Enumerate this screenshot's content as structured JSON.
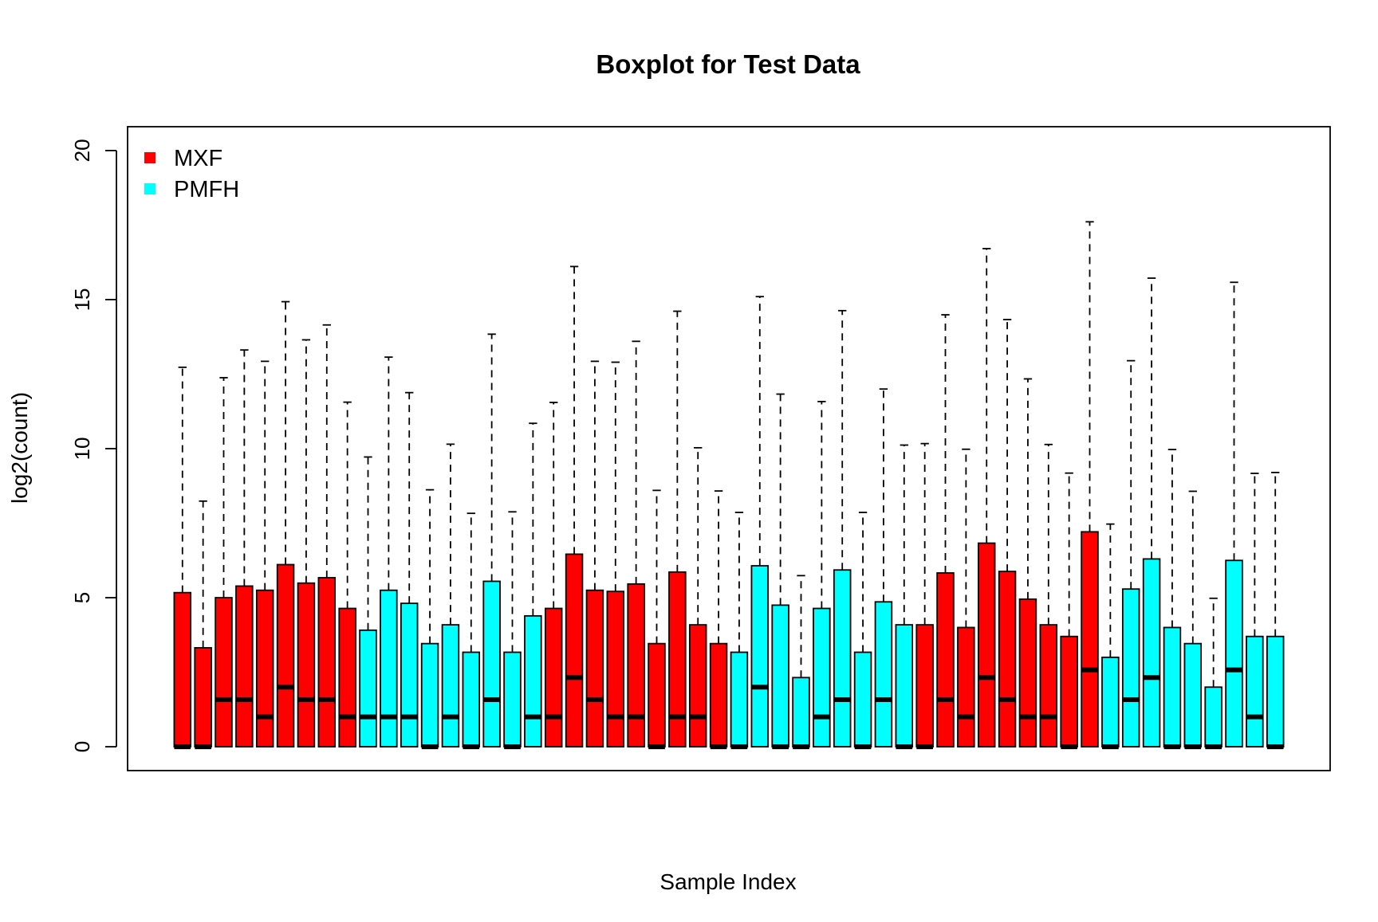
{
  "chart_data": {
    "type": "boxplot",
    "title": "Boxplot for Test Data",
    "xlabel": "Sample Index",
    "ylabel": "log2(count)",
    "ylim": [
      -0.8,
      20.8
    ],
    "y_ticks": [
      0,
      5,
      10,
      15,
      20
    ],
    "x_tick_labels": [],
    "grid": false,
    "legend": {
      "placement": "top-left",
      "items": [
        {
          "label": "MXF",
          "color": "#ff0000"
        },
        {
          "label": "PMFH",
          "color": "#00ffff"
        }
      ]
    },
    "colors": {
      "MXF": "#ff0000",
      "PMFH": "#00ffff"
    },
    "samples": [
      {
        "group": "MXF",
        "min": 0,
        "q1": 0,
        "median": 0.0,
        "q3": 5.17,
        "whisker_max": 12.73
      },
      {
        "group": "MXF",
        "min": 0,
        "q1": 0,
        "median": 0.0,
        "q3": 3.32,
        "whisker_max": 8.24
      },
      {
        "group": "MXF",
        "min": 0,
        "q1": 0,
        "median": 1.58,
        "q3": 5.0,
        "whisker_max": 12.38
      },
      {
        "group": "MXF",
        "min": 0,
        "q1": 0,
        "median": 1.58,
        "q3": 5.39,
        "whisker_max": 13.31
      },
      {
        "group": "MXF",
        "min": 0,
        "q1": 0,
        "median": 1.0,
        "q3": 5.25,
        "whisker_max": 12.93
      },
      {
        "group": "MXF",
        "min": 0,
        "q1": 0,
        "median": 2.0,
        "q3": 6.11,
        "whisker_max": 14.93
      },
      {
        "group": "MXF",
        "min": 0,
        "q1": 0,
        "median": 1.58,
        "q3": 5.49,
        "whisker_max": 13.65
      },
      {
        "group": "MXF",
        "min": 0,
        "q1": 0,
        "median": 1.58,
        "q3": 5.67,
        "whisker_max": 14.15
      },
      {
        "group": "MXF",
        "min": 0,
        "q1": 0,
        "median": 1.0,
        "q3": 4.64,
        "whisker_max": 11.56
      },
      {
        "group": "PMFH",
        "min": 0,
        "q1": 0,
        "median": 1.0,
        "q3": 3.91,
        "whisker_max": 9.72
      },
      {
        "group": "PMFH",
        "min": 0,
        "q1": 0,
        "median": 1.0,
        "q3": 5.25,
        "whisker_max": 13.07
      },
      {
        "group": "PMFH",
        "min": 0,
        "q1": 0,
        "median": 1.0,
        "q3": 4.81,
        "whisker_max": 11.88
      },
      {
        "group": "PMFH",
        "min": 0,
        "q1": 0,
        "median": 0.0,
        "q3": 3.46,
        "whisker_max": 8.62
      },
      {
        "group": "PMFH",
        "min": 0,
        "q1": 0,
        "median": 1.0,
        "q3": 4.09,
        "whisker_max": 10.15
      },
      {
        "group": "PMFH",
        "min": 0,
        "q1": 0,
        "median": 0.0,
        "q3": 3.17,
        "whisker_max": 7.83
      },
      {
        "group": "PMFH",
        "min": 0,
        "q1": 0,
        "median": 1.58,
        "q3": 5.55,
        "whisker_max": 13.84
      },
      {
        "group": "PMFH",
        "min": 0,
        "q1": 0,
        "median": 0.0,
        "q3": 3.17,
        "whisker_max": 7.88
      },
      {
        "group": "PMFH",
        "min": 0,
        "q1": 0,
        "median": 1.0,
        "q3": 4.39,
        "whisker_max": 10.85
      },
      {
        "group": "MXF",
        "min": 0,
        "q1": 0,
        "median": 1.0,
        "q3": 4.64,
        "whisker_max": 11.55
      },
      {
        "group": "MXF",
        "min": 0,
        "q1": 0,
        "median": 2.32,
        "q3": 6.46,
        "whisker_max": 16.11
      },
      {
        "group": "MXF",
        "min": 0,
        "q1": 0,
        "median": 1.58,
        "q3": 5.25,
        "whisker_max": 12.93
      },
      {
        "group": "MXF",
        "min": 0,
        "q1": 0,
        "median": 1.0,
        "q3": 5.21,
        "whisker_max": 12.9
      },
      {
        "group": "MXF",
        "min": 0,
        "q1": 0,
        "median": 1.0,
        "q3": 5.46,
        "whisker_max": 13.6
      },
      {
        "group": "MXF",
        "min": 0,
        "q1": 0,
        "median": 0.0,
        "q3": 3.46,
        "whisker_max": 8.6
      },
      {
        "group": "MXF",
        "min": 0,
        "q1": 0,
        "median": 1.0,
        "q3": 5.86,
        "whisker_max": 14.61
      },
      {
        "group": "MXF",
        "min": 0,
        "q1": 0,
        "median": 1.0,
        "q3": 4.09,
        "whisker_max": 10.03
      },
      {
        "group": "MXF",
        "min": 0,
        "q1": 0,
        "median": 0.0,
        "q3": 3.46,
        "whisker_max": 8.58
      },
      {
        "group": "PMFH",
        "min": 0,
        "q1": 0,
        "median": 0.0,
        "q3": 3.17,
        "whisker_max": 7.86
      },
      {
        "group": "PMFH",
        "min": 0,
        "q1": 0,
        "median": 2.0,
        "q3": 6.07,
        "whisker_max": 15.1
      },
      {
        "group": "PMFH",
        "min": 0,
        "q1": 0,
        "median": 0.0,
        "q3": 4.75,
        "whisker_max": 11.83
      },
      {
        "group": "PMFH",
        "min": 0,
        "q1": 0,
        "median": 0.0,
        "q3": 2.32,
        "whisker_max": 5.74
      },
      {
        "group": "PMFH",
        "min": 0,
        "q1": 0,
        "median": 1.0,
        "q3": 4.64,
        "whisker_max": 11.58
      },
      {
        "group": "PMFH",
        "min": 0,
        "q1": 0,
        "median": 1.58,
        "q3": 5.93,
        "whisker_max": 14.63
      },
      {
        "group": "PMFH",
        "min": 0,
        "q1": 0,
        "median": 0.0,
        "q3": 3.17,
        "whisker_max": 7.86
      },
      {
        "group": "PMFH",
        "min": 0,
        "q1": 0,
        "median": 1.58,
        "q3": 4.86,
        "whisker_max": 12.0
      },
      {
        "group": "PMFH",
        "min": 0,
        "q1": 0,
        "median": 0.0,
        "q3": 4.09,
        "whisker_max": 10.12
      },
      {
        "group": "MXF",
        "min": 0,
        "q1": 0,
        "median": 0.0,
        "q3": 4.09,
        "whisker_max": 10.17
      },
      {
        "group": "MXF",
        "min": 0,
        "q1": 0,
        "median": 1.58,
        "q3": 5.83,
        "whisker_max": 14.49
      },
      {
        "group": "MXF",
        "min": 0,
        "q1": 0,
        "median": 1.0,
        "q3": 4.0,
        "whisker_max": 9.98
      },
      {
        "group": "MXF",
        "min": 0,
        "q1": 0,
        "median": 2.32,
        "q3": 6.83,
        "whisker_max": 16.71
      },
      {
        "group": "MXF",
        "min": 0,
        "q1": 0,
        "median": 1.58,
        "q3": 5.88,
        "whisker_max": 14.33
      },
      {
        "group": "MXF",
        "min": 0,
        "q1": 0,
        "median": 1.0,
        "q3": 4.95,
        "whisker_max": 12.34
      },
      {
        "group": "MXF",
        "min": 0,
        "q1": 0,
        "median": 1.0,
        "q3": 4.09,
        "whisker_max": 10.14
      },
      {
        "group": "MXF",
        "min": 0,
        "q1": 0,
        "median": 0.0,
        "q3": 3.7,
        "whisker_max": 9.18
      },
      {
        "group": "MXF",
        "min": 0,
        "q1": 0,
        "median": 2.58,
        "q3": 7.21,
        "whisker_max": 17.61
      },
      {
        "group": "PMFH",
        "min": 0,
        "q1": 0,
        "median": 0.0,
        "q3": 3.0,
        "whisker_max": 7.47
      },
      {
        "group": "PMFH",
        "min": 0,
        "q1": 0,
        "median": 1.58,
        "q3": 5.29,
        "whisker_max": 12.95
      },
      {
        "group": "PMFH",
        "min": 0,
        "q1": 0,
        "median": 2.32,
        "q3": 6.3,
        "whisker_max": 15.72
      },
      {
        "group": "PMFH",
        "min": 0,
        "q1": 0,
        "median": 0.0,
        "q3": 4.0,
        "whisker_max": 9.97
      },
      {
        "group": "PMFH",
        "min": 0,
        "q1": 0,
        "median": 0.0,
        "q3": 3.46,
        "whisker_max": 8.57
      },
      {
        "group": "PMFH",
        "min": 0,
        "q1": 0,
        "median": 0.0,
        "q3": 2.0,
        "whisker_max": 4.98
      },
      {
        "group": "PMFH",
        "min": 0,
        "q1": 0,
        "median": 2.58,
        "q3": 6.25,
        "whisker_max": 15.58
      },
      {
        "group": "PMFH",
        "min": 0,
        "q1": 0,
        "median": 1.0,
        "q3": 3.7,
        "whisker_max": 9.17
      },
      {
        "group": "PMFH",
        "min": 0,
        "q1": 0,
        "median": 0.0,
        "q3": 3.7,
        "whisker_max": 9.2
      }
    ]
  }
}
